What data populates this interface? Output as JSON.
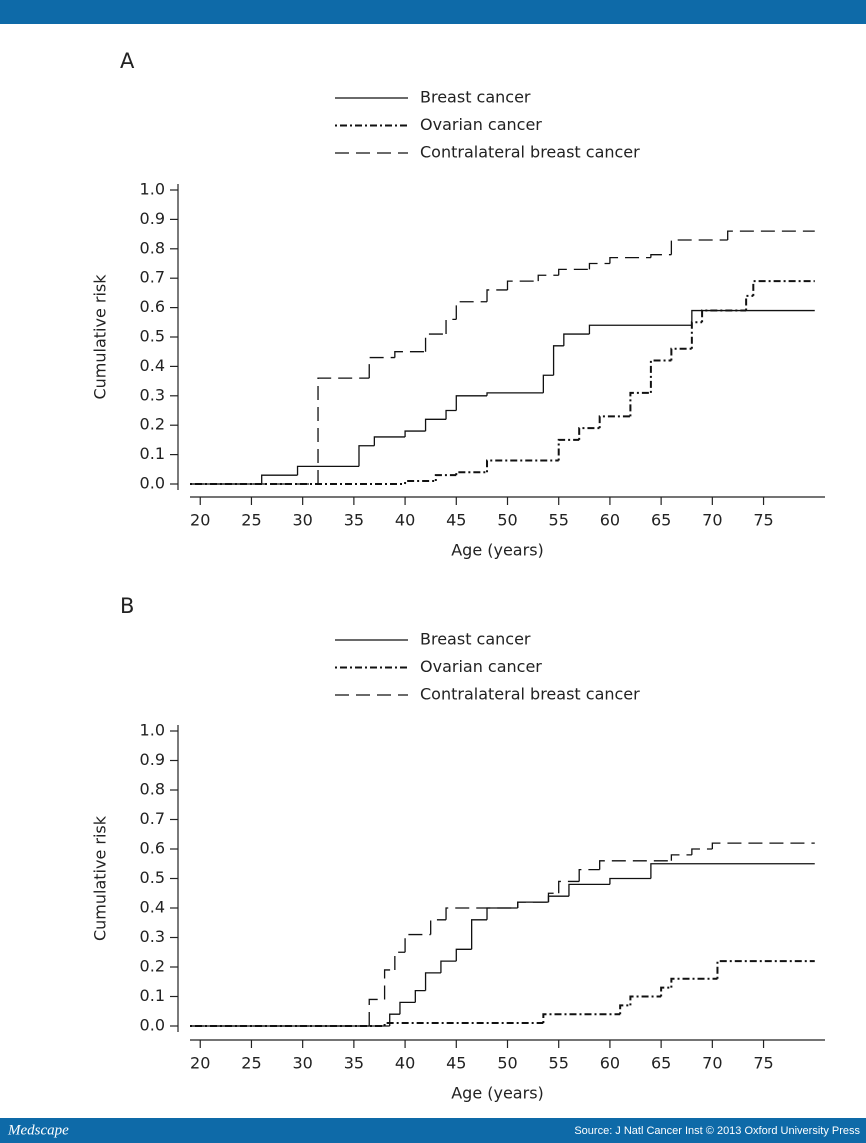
{
  "chart_data": [
    {
      "type": "step",
      "title": "A",
      "x_label": "Age (years)",
      "y_label": "Cumulative risk",
      "xlim": [
        19,
        81
      ],
      "ylim": [
        0,
        1
      ],
      "xticks": [
        20,
        25,
        30,
        35,
        40,
        45,
        50,
        55,
        60,
        65,
        70,
        75
      ],
      "yticks": [
        {
          "value": 0,
          "label": "0.0"
        },
        0.1,
        0.2,
        0.3,
        0.4,
        0.5,
        0.6,
        0.7,
        0.8,
        0.9,
        {
          "value": 1,
          "label": "1.0"
        }
      ],
      "series": [
        {
          "name": "Breast cancer",
          "color": "#111111",
          "line_style": "solid",
          "x": [
            19,
            26,
            29.5,
            35.5,
            37,
            40,
            42,
            44,
            45,
            48,
            53.5,
            54.5,
            55.5,
            58,
            68,
            80
          ],
          "values": [
            0,
            0.03,
            0.06,
            0.13,
            0.16,
            0.18,
            0.22,
            0.25,
            0.3,
            0.31,
            0.37,
            0.47,
            0.51,
            0.54,
            0.59,
            0.59
          ]
        },
        {
          "name": "Ovarian cancer",
          "color": "#111111",
          "line_style": "dashdot",
          "x": [
            19,
            40,
            43,
            45,
            48,
            55,
            57,
            59,
            62,
            64,
            66,
            68,
            69,
            73.3,
            74,
            80
          ],
          "values": [
            0,
            0.01,
            0.03,
            0.04,
            0.08,
            0.15,
            0.19,
            0.23,
            0.31,
            0.42,
            0.46,
            0.55,
            0.59,
            0.64,
            0.69,
            0.69
          ]
        },
        {
          "name": "Contralateral breast cancer",
          "color": "#111111",
          "line_style": "dashed",
          "x": [
            19,
            31.5,
            36.5,
            39,
            42,
            44,
            45,
            48,
            50,
            53,
            55,
            58,
            60,
            64,
            66,
            71.5,
            80
          ],
          "values": [
            0,
            0.36,
            0.43,
            0.45,
            0.51,
            0.56,
            0.62,
            0.66,
            0.69,
            0.71,
            0.73,
            0.75,
            0.77,
            0.78,
            0.83,
            0.86,
            0.86
          ]
        }
      ]
    },
    {
      "type": "step",
      "title": "B",
      "x_label": "Age (years)",
      "y_label": "Cumulative risk",
      "xlim": [
        19,
        81
      ],
      "ylim": [
        0,
        1
      ],
      "xticks": [
        20,
        25,
        30,
        35,
        40,
        45,
        50,
        55,
        60,
        65,
        70,
        75
      ],
      "yticks": [
        {
          "value": 0,
          "label": "0.0"
        },
        0.1,
        0.2,
        0.3,
        0.4,
        0.5,
        0.6,
        0.7,
        0.8,
        0.9,
        {
          "value": 1,
          "label": "1.0"
        }
      ],
      "series": [
        {
          "name": "Breast cancer",
          "color": "#111111",
          "line_style": "solid",
          "x": [
            19,
            38.5,
            39.5,
            41,
            42,
            43.5,
            45,
            46.5,
            48,
            51,
            54,
            56,
            60,
            64,
            80
          ],
          "values": [
            0,
            0.04,
            0.08,
            0.12,
            0.18,
            0.22,
            0.26,
            0.36,
            0.4,
            0.42,
            0.44,
            0.48,
            0.5,
            0.55,
            0.55
          ]
        },
        {
          "name": "Ovarian cancer",
          "color": "#111111",
          "line_style": "dashdot",
          "x": [
            19,
            38,
            53.5,
            61,
            62,
            65,
            66,
            70.5,
            80
          ],
          "values": [
            0,
            0.01,
            0.04,
            0.07,
            0.1,
            0.13,
            0.16,
            0.22,
            0.22
          ]
        },
        {
          "name": "Contralateral breast cancer",
          "color": "#111111",
          "line_style": "dashed",
          "x": [
            19,
            36.5,
            38,
            39,
            40,
            42.5,
            44,
            51,
            54,
            55,
            57,
            59,
            66,
            68,
            70,
            80
          ],
          "values": [
            0,
            0.09,
            0.19,
            0.25,
            0.31,
            0.36,
            0.4,
            0.42,
            0.45,
            0.49,
            0.53,
            0.56,
            0.58,
            0.6,
            0.62,
            0.62
          ]
        }
      ]
    }
  ],
  "footer": {
    "logo": "Medscape",
    "source": "Source: J Natl Cancer Inst © 2013 Oxford University Press"
  }
}
